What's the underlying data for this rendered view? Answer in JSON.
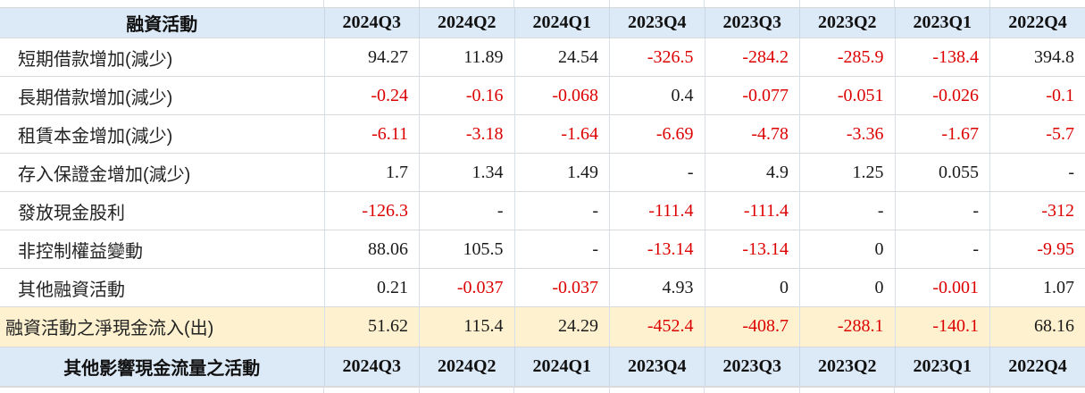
{
  "financing_table": {
    "title": "融資活動",
    "quarters": [
      "2024Q3",
      "2024Q2",
      "2024Q1",
      "2023Q4",
      "2023Q3",
      "2023Q2",
      "2023Q1",
      "2022Q4"
    ],
    "rows": [
      {
        "label": "短期借款增加(減少)",
        "values": [
          "94.27",
          "11.89",
          "24.54",
          "-326.5",
          "-284.2",
          "-285.9",
          "-138.4",
          "394.8"
        ]
      },
      {
        "label": "長期借款增加(減少)",
        "values": [
          "-0.24",
          "-0.16",
          "-0.068",
          "0.4",
          "-0.077",
          "-0.051",
          "-0.026",
          "-0.1"
        ]
      },
      {
        "label": "租賃本金增加(減少)",
        "values": [
          "-6.11",
          "-3.18",
          "-1.64",
          "-6.69",
          "-4.78",
          "-3.36",
          "-1.67",
          "-5.7"
        ]
      },
      {
        "label": "存入保證金增加(減少)",
        "values": [
          "1.7",
          "1.34",
          "1.49",
          "-",
          "4.9",
          "1.25",
          "0.055",
          "-"
        ]
      },
      {
        "label": "發放現金股利",
        "values": [
          "-126.3",
          "-",
          "-",
          "-111.4",
          "-111.4",
          "-",
          "-",
          "-312"
        ]
      },
      {
        "label": "非控制權益變動",
        "values": [
          "88.06",
          "105.5",
          "-",
          "-13.14",
          "-13.14",
          "0",
          "-",
          "-9.95"
        ]
      },
      {
        "label": "其他融資活動",
        "values": [
          "0.21",
          "-0.037",
          "-0.037",
          "4.93",
          "0",
          "0",
          "-0.001",
          "1.07"
        ]
      }
    ],
    "total_row": {
      "label": "融資活動之淨現金流入(出)",
      "values": [
        "51.62",
        "115.4",
        "24.29",
        "-452.4",
        "-408.7",
        "-288.1",
        "-140.1",
        "68.16"
      ]
    }
  },
  "other_table": {
    "title": "其他影響現金流量之活動",
    "quarters": [
      "2024Q3",
      "2024Q2",
      "2024Q1",
      "2023Q4",
      "2023Q3",
      "2023Q2",
      "2023Q1",
      "2022Q4"
    ]
  },
  "colors": {
    "header_bg": "#dce9f7",
    "header_title": "#2222cc",
    "negative": "#dd0000",
    "positive": "#1a1a1a",
    "total_row_bg": "#fdf1cf"
  }
}
